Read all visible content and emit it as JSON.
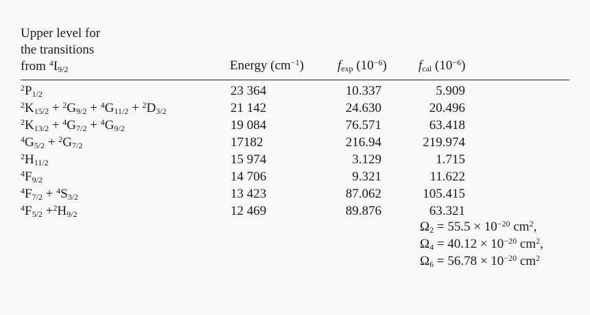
{
  "header": {
    "col1_line1": "Upper level for",
    "col1_line2": "the transitions",
    "col1_line3_prefix": "from ",
    "col1_line3_sup": "4",
    "col1_line3_base": "I",
    "col1_line3_sub": "9/2",
    "energy": "Energy (cm",
    "energy_sup": "−1",
    "energy_close": ")",
    "fexp_base": "f",
    "fexp_sub": "exp",
    "fexp_unit": " (10",
    "fexp_sup": "−6",
    "fexp_close": ")",
    "fcal_base": "f",
    "fcal_sub": "cal",
    "fcal_unit": " (10",
    "fcal_sup": "−6",
    "fcal_close": ")"
  },
  "rows": [
    {
      "energy": "23 364",
      "fexp": "10.337",
      "fcal": "5.909"
    },
    {
      "energy": "21 142",
      "fexp": "24.630",
      "fcal": "20.496"
    },
    {
      "energy": "19 084",
      "fexp": "76.571",
      "fcal": "63.418"
    },
    {
      "energy": "17182",
      "fexp": "216.94",
      "fcal": "219.974"
    },
    {
      "energy": "15 974",
      "fexp": "3.129",
      "fcal": "1.715"
    },
    {
      "energy": "14 706",
      "fexp": "9.321",
      "fcal": "11.622"
    },
    {
      "energy": "13 423",
      "fexp": "87.062",
      "fcal": "105.415"
    },
    {
      "energy": "12 469",
      "fexp": "89.876",
      "fcal": "63.321"
    }
  ],
  "omegas": [
    {
      "symbol": "Ω",
      "sub": "2",
      "value": " = 55.5 × 10",
      "sup": "−20",
      "unit": " cm",
      "unit_sup": "2",
      "trail": ","
    },
    {
      "symbol": "Ω",
      "sub": "4",
      "value": " = 40.12 × 10",
      "sup": "−20",
      "unit": " cm",
      "unit_sup": "2",
      "trail": ","
    },
    {
      "symbol": "Ω",
      "sub": "6",
      "value": " = 56.78 × 10",
      "sup": "−20",
      "unit": " cm",
      "unit_sup": "2",
      "trail": ""
    }
  ]
}
